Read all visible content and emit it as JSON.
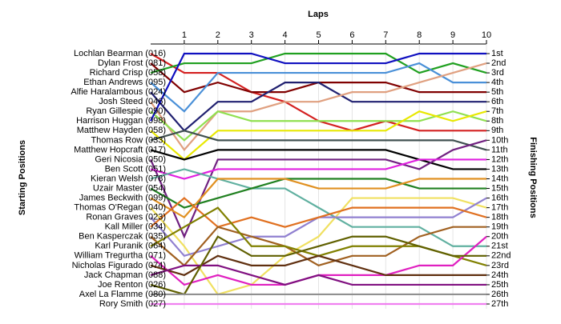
{
  "chart_data": {
    "type": "bump",
    "title": "Laps",
    "y_label": "Starting Positions",
    "y2_label": "Finishing Positions",
    "x": [
      0,
      1,
      2,
      3,
      4,
      5,
      6,
      7,
      8,
      9,
      10
    ],
    "xlim": [
      0,
      10
    ],
    "xticks": [
      1,
      2,
      3,
      4,
      5,
      6,
      7,
      8,
      9,
      10
    ],
    "ylim": [
      1,
      27
    ],
    "finishing_labels": [
      "1st",
      "2nd",
      "3rd",
      "4th",
      "5th",
      "6th",
      "7th",
      "8th",
      "9th",
      "10th",
      "11th",
      "12th",
      "13th",
      "14th",
      "15th",
      "16th",
      "17th",
      "18th",
      "19th",
      "20th",
      "21st",
      "22nd",
      "23rd",
      "24th",
      "25th",
      "26th",
      "27th"
    ],
    "series": [
      {
        "name": "Lochlan Bearman (016)",
        "color": "#d42020",
        "values": [
          1,
          3,
          3,
          5,
          6,
          8,
          9,
          8,
          9,
          9,
          9
        ]
      },
      {
        "name": "Dylan Frost (081)",
        "color": "#800000",
        "values": [
          2,
          5,
          4,
          5,
          5,
          4,
          4,
          4,
          5,
          5,
          5
        ]
      },
      {
        "name": "Richard Crisp (058)",
        "color": "#20a020",
        "values": [
          3,
          2,
          2,
          2,
          1,
          1,
          1,
          1,
          3,
          2,
          3
        ]
      },
      {
        "name": "Ethan Andrews (095)",
        "color": "#4a90d8",
        "values": [
          4,
          7,
          3,
          3,
          3,
          3,
          3,
          3,
          2,
          4,
          4
        ]
      },
      {
        "name": "Alfie Haralambous (024)",
        "color": "#202070",
        "values": [
          5,
          9,
          6,
          6,
          4,
          4,
          6,
          6,
          6,
          6,
          6
        ]
      },
      {
        "name": "Josh Steed (046)",
        "color": "#e0a080",
        "values": [
          6,
          11,
          7,
          7,
          6,
          6,
          5,
          5,
          4,
          3,
          2
        ]
      },
      {
        "name": "Ryan Gillespie (090)",
        "color": "#90e050",
        "values": [
          7,
          10,
          7,
          8,
          8,
          8,
          8,
          8,
          8,
          7,
          8
        ]
      },
      {
        "name": "Harrison Huggan (098)",
        "color": "#1010c0",
        "values": [
          8,
          1,
          1,
          1,
          2,
          2,
          2,
          2,
          1,
          1,
          1
        ]
      },
      {
        "name": "Matthew Hayden (058)",
        "color": "#e8e800",
        "values": [
          9,
          12,
          9,
          9,
          9,
          9,
          9,
          9,
          7,
          8,
          7
        ]
      },
      {
        "name": "Thomas Row (033)",
        "color": "#405050",
        "values": [
          10,
          9,
          10,
          10,
          10,
          10,
          10,
          10,
          10,
          10,
          11
        ]
      },
      {
        "name": "Matthew Hopcraft (017)",
        "color": "#000000",
        "values": [
          11,
          12,
          11,
          11,
          11,
          11,
          11,
          11,
          12,
          13,
          13
        ]
      },
      {
        "name": "Geri Nicosia (050)",
        "color": "#702080",
        "values": [
          12,
          20,
          12,
          12,
          12,
          12,
          12,
          12,
          13,
          11,
          10
        ]
      },
      {
        "name": "Ben Scott (051)",
        "color": "#e020e0",
        "values": [
          13,
          14,
          13,
          13,
          13,
          13,
          13,
          13,
          12,
          12,
          12
        ]
      },
      {
        "name": "Kieran Welsh (078)",
        "color": "#60b0a0",
        "values": [
          14,
          13,
          14,
          15,
          15,
          17,
          19,
          19,
          19,
          21,
          21
        ]
      },
      {
        "name": "Uzair Master (054)",
        "color": "#208020",
        "values": [
          15,
          17,
          16,
          15,
          14,
          14,
          14,
          14,
          15,
          15,
          15
        ]
      },
      {
        "name": "James Beckwith (099)",
        "color": "#e09020",
        "values": [
          16,
          18,
          14,
          14,
          14,
          15,
          15,
          15,
          14,
          14,
          14
        ]
      },
      {
        "name": "Thomas O'Regan (040)",
        "color": "#f0e060",
        "values": [
          17,
          21,
          26,
          25,
          22,
          20,
          16,
          16,
          16,
          16,
          17
        ]
      },
      {
        "name": "Ronan Graves (023)",
        "color": "#9080d0",
        "values": [
          18,
          22,
          21,
          20,
          20,
          18,
          18,
          18,
          18,
          18,
          16
        ]
      },
      {
        "name": "Kall Miller (034)",
        "color": "#e07020",
        "values": [
          19,
          16,
          19,
          18,
          19,
          18,
          17,
          17,
          17,
          17,
          18
        ]
      },
      {
        "name": "Ben Kasperczak (035)",
        "color": "#a06020",
        "values": [
          20,
          23,
          19,
          20,
          21,
          23,
          22,
          22,
          20,
          19,
          19
        ]
      },
      {
        "name": "Karl Puranik (064)",
        "color": "#808000",
        "values": [
          21,
          19,
          17,
          21,
          21,
          22,
          21,
          21,
          21,
          22,
          23
        ]
      },
      {
        "name": "William Tregurtha (071)",
        "color": "#e020c0",
        "values": [
          22,
          25,
          24,
          25,
          25,
          24,
          24,
          24,
          23,
          23,
          20
        ]
      },
      {
        "name": "Nicholas Figurado (074)",
        "color": "#603010",
        "values": [
          23,
          24,
          22,
          23,
          23,
          22,
          23,
          24,
          24,
          24,
          24
        ]
      },
      {
        "name": "Jack Chapman (088)",
        "color": "#801080",
        "values": [
          24,
          23,
          23,
          24,
          25,
          24,
          25,
          25,
          25,
          25,
          25
        ]
      },
      {
        "name": "Joe Renton (026)",
        "color": "#606000",
        "values": [
          25,
          26,
          20,
          22,
          22,
          21,
          20,
          20,
          21,
          22,
          22
        ]
      },
      {
        "name": "Axel La Flamme (080)",
        "color": "#909090",
        "values": [
          26,
          26,
          26,
          26,
          26,
          26,
          26,
          26,
          26,
          26,
          26
        ]
      },
      {
        "name": "Rory Smith (027)",
        "color": "#f080f0",
        "values": [
          27,
          27,
          27,
          27,
          27,
          27,
          27,
          27,
          27,
          27,
          27
        ]
      }
    ]
  }
}
